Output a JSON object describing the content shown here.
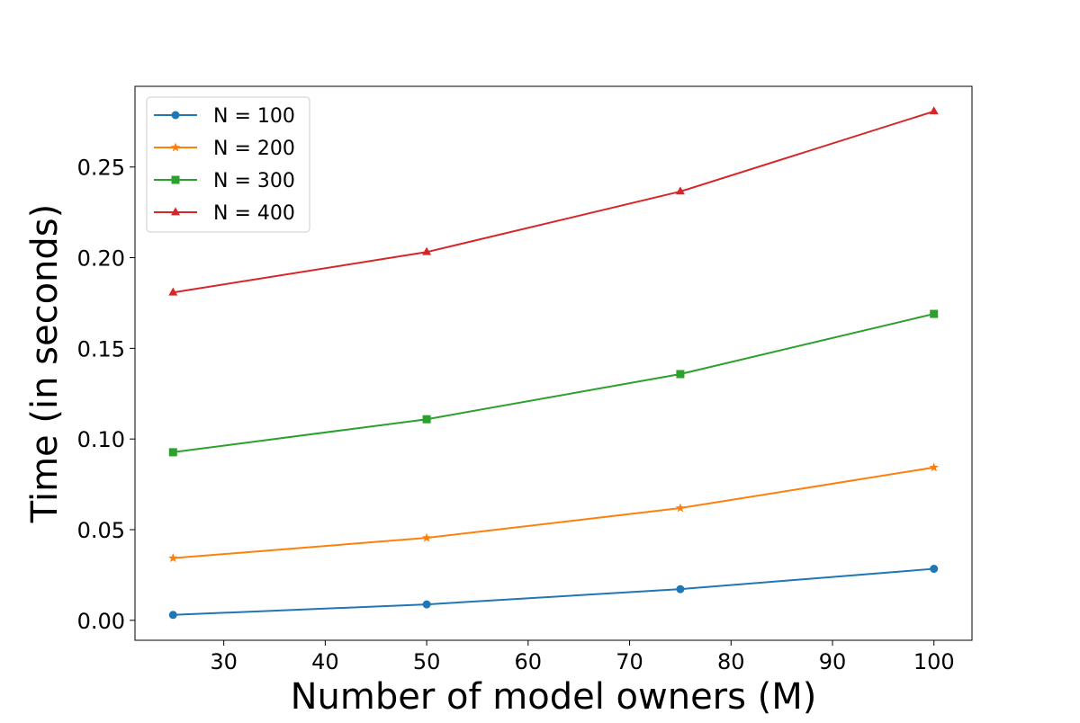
{
  "chart_data": {
    "type": "line",
    "xlabel": "Number of model owners (M)",
    "ylabel": "Time (in seconds)",
    "xlim": [
      21.25,
      103.75
    ],
    "ylim": [
      -0.011,
      0.2945
    ],
    "xticks": [
      30,
      40,
      50,
      60,
      70,
      80,
      90,
      100
    ],
    "xtick_labels": [
      "30",
      "40",
      "50",
      "60",
      "70",
      "80",
      "90",
      "100"
    ],
    "yticks": [
      0.0,
      0.05,
      0.1,
      0.15,
      0.2,
      0.25
    ],
    "ytick_labels": [
      "0.00",
      "0.05",
      "0.10",
      "0.15",
      "0.20",
      "0.25"
    ],
    "grid": false,
    "legend_position": "top-left",
    "x": [
      25,
      50,
      75,
      100
    ],
    "series": [
      {
        "name": "N = 100",
        "color": "#1f77b4",
        "marker": "circle",
        "values": [
          0.003,
          0.0088,
          0.0172,
          0.0284
        ]
      },
      {
        "name": "N = 200",
        "color": "#ff7f0e",
        "marker": "star",
        "values": [
          0.0343,
          0.0455,
          0.0619,
          0.0843
        ]
      },
      {
        "name": "N = 300",
        "color": "#2ca02c",
        "marker": "square",
        "values": [
          0.0927,
          0.1109,
          0.1358,
          0.169
        ]
      },
      {
        "name": "N = 400",
        "color": "#d62728",
        "marker": "triangle",
        "values": [
          0.1808,
          0.2031,
          0.2365,
          0.2807
        ]
      }
    ]
  }
}
